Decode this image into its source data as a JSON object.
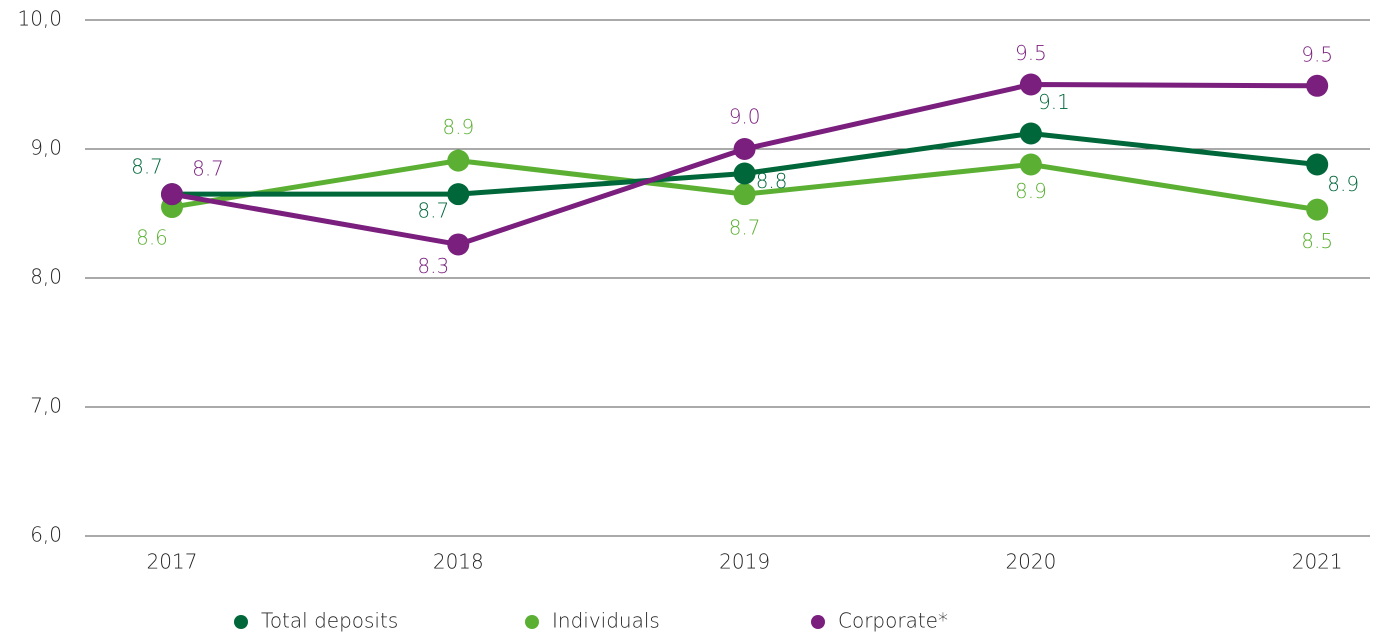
{
  "chart_data": {
    "type": "line",
    "categories": [
      "2017",
      "2018",
      "2019",
      "2020",
      "2021"
    ],
    "series": [
      {
        "name": "Total deposits",
        "color": "#00673a",
        "values": [
          8.65,
          8.65,
          8.81,
          9.12,
          8.88
        ],
        "value_labels": [
          "8.7",
          "8.7",
          "8.8",
          "9.1",
          "8.9"
        ]
      },
      {
        "name": "Individuals",
        "color": "#5bb033",
        "values": [
          8.55,
          8.91,
          8.65,
          8.88,
          8.53
        ],
        "value_labels": [
          "8.6",
          "8.9",
          "8.7",
          "8.9",
          "8.5"
        ]
      },
      {
        "name": "Corporate*",
        "color": "#7a1f7e",
        "values": [
          8.65,
          8.26,
          9.0,
          9.5,
          9.49
        ],
        "value_labels": [
          "8.7",
          "8.3",
          "9.0",
          "9.5",
          "9.5"
        ]
      }
    ],
    "ylim": [
      6,
      10
    ],
    "yticks": [
      {
        "value": 6,
        "label": "6,0"
      },
      {
        "value": 7,
        "label": "7,0"
      },
      {
        "value": 8,
        "label": "8,0"
      },
      {
        "value": 9,
        "label": "9,0"
      },
      {
        "value": 10,
        "label": "10,0"
      }
    ],
    "grid": true,
    "legend": "bottom"
  }
}
